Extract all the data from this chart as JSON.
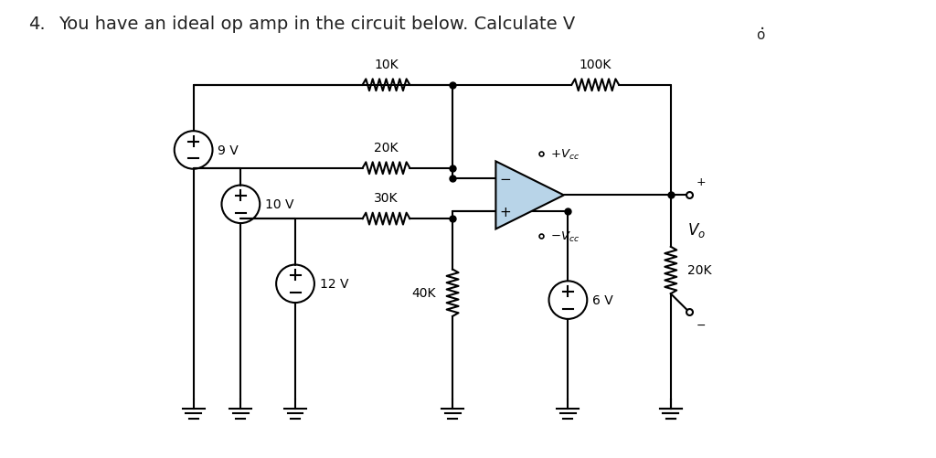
{
  "title_num": "4.",
  "title_text": "  You have an ideal op amp in the circuit below. Calculate V",
  "title_sub": "o",
  "background_color": "#ffffff",
  "title_fontsize": 14,
  "title_color": "#222222",
  "fig_width": 10.24,
  "fig_height": 5.02,
  "lw": 1.5,
  "opamp_color": "#b8d4e8",
  "label_10K": "10K",
  "label_20K": "20K",
  "label_30K": "30K",
  "label_40K": "40K",
  "label_100K": "100K",
  "label_20K_r": "20K",
  "label_9V": "9 V",
  "label_10V": "10 V",
  "label_12V": "12 V",
  "label_6V": "6 V",
  "label_Vcc_pos": "$+V_{cc}$",
  "label_Vcc_neg": "$\\delta-V_{cc}$",
  "label_Vo": "$V_o$"
}
